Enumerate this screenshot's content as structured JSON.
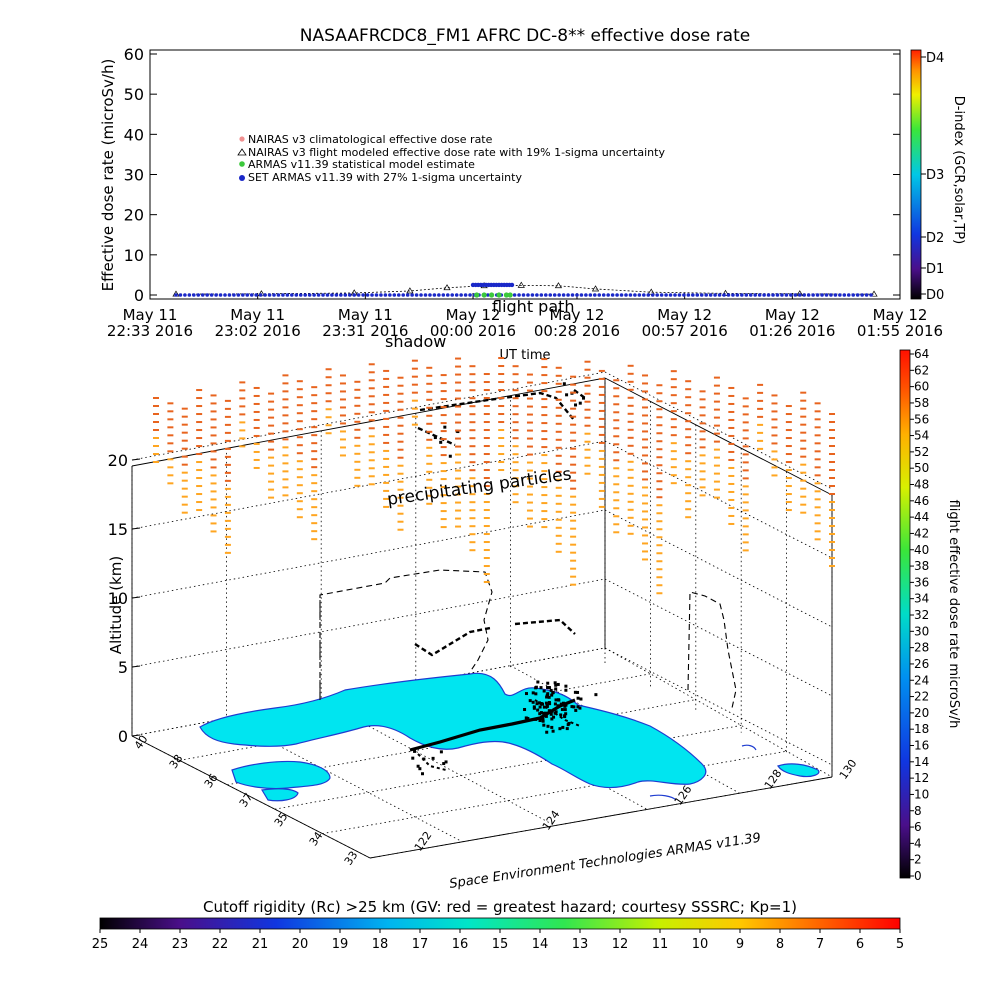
{
  "title": "NASAAFRCDC8_FM1 AFRC DC-8** effective dose rate",
  "chart_data": [
    {
      "type": "line",
      "ylabel": "Effective dose rate (microSv/h)",
      "xlabel": "UT time",
      "ylim": [
        0,
        60
      ],
      "yticks": [
        "0",
        "10",
        "20",
        "30",
        "40",
        "50",
        "60"
      ],
      "xtick_labels": [
        [
          "May 11",
          "22:33 2016"
        ],
        [
          "May 11",
          "23:02 2016"
        ],
        [
          "May 11",
          "23:31 2016"
        ],
        [
          "May 12",
          "00:00 2016"
        ],
        [
          "May 12",
          "00:28 2016"
        ],
        [
          "May 12",
          "00:57 2016"
        ],
        [
          "May 12",
          "01:26 2016"
        ],
        [
          "May 12",
          "01:55 2016"
        ]
      ],
      "xtick_minutes": [
        0,
        29,
        58,
        87,
        115,
        144,
        173,
        202
      ],
      "legend": [
        "NAIRAS v3 climatological effective dose rate",
        "NAIRAS v3 flight modeled effective dose rate with 19% 1-sigma uncertainty",
        "ARMAS v11.39 statistical model estimate",
        "SET ARMAS v11.39 with 27% 1-sigma uncertainty"
      ],
      "legend_placement": "upper-left",
      "series": [
        {
          "name": "NAIRAS v3 flight modeled effective dose rate with 19% 1-sigma uncertainty",
          "x": [
            7,
            30,
            55,
            70,
            80,
            90,
            100,
            110,
            120,
            135,
            155,
            175,
            195
          ],
          "y": [
            0.2,
            0.3,
            0.5,
            1.0,
            1.8,
            2.3,
            2.4,
            2.3,
            1.5,
            0.7,
            0.4,
            0.3,
            0.2
          ]
        },
        {
          "name": "SET ARMAS v11.39 with 27% 1-sigma uncertainty",
          "x": [
            7,
            30,
            60,
            87,
            88,
            97,
            98,
            130,
            160,
            195
          ],
          "y": [
            0,
            0,
            0,
            0,
            2.5,
            2.5,
            0,
            0,
            0,
            0
          ]
        },
        {
          "name": "ARMAS v11.39 statistical model estimate",
          "x": [
            88,
            90,
            92,
            94,
            96,
            97
          ],
          "y": [
            0,
            0,
            0,
            0,
            0,
            0
          ]
        }
      ],
      "colorbar": {
        "label": "D-index (GCR,solar,TP)",
        "ticks": [
          "D0",
          "D1",
          "D2",
          "D3",
          "D4"
        ]
      }
    },
    {
      "type": "scatter",
      "zlabel": "Altitude (km)",
      "zticks": [
        "0",
        "5",
        "10",
        "15",
        "20"
      ],
      "lat_ticks": [
        "40",
        "38",
        "36",
        "37",
        "35",
        "34",
        "33"
      ],
      "lon_ticks": [
        "122",
        "124",
        "126",
        "128",
        "130"
      ],
      "annotations": [
        "shadow",
        "flight path",
        "precipitating particles"
      ],
      "credit": "Space Environment Technologies ARMAS v11.39",
      "colorbar": {
        "label": "flight effective dose rate microSv/h",
        "ticks": [
          "0",
          "2",
          "4",
          "6",
          "8",
          "10",
          "12",
          "14",
          "16",
          "18",
          "20",
          "22",
          "24",
          "26",
          "28",
          "30",
          "32",
          "34",
          "36",
          "38",
          "40",
          "42",
          "44",
          "46",
          "48",
          "50",
          "52",
          "54",
          "56",
          "58",
          "60",
          "62",
          "64"
        ]
      },
      "rigidity_bar": {
        "label": "Cutoff rigidity (Rc) >25 km (GV: red = greatest hazard; courtesy SSSRC; Kp=1)",
        "ticks": [
          "25",
          "24",
          "23",
          "22",
          "21",
          "20",
          "19",
          "18",
          "17",
          "16",
          "15",
          "14",
          "13",
          "12",
          "11",
          "10",
          "9",
          "8",
          "7",
          "6",
          "5"
        ]
      },
      "colors": {
        "land": "#00e5f0",
        "coast": "#1e3cd0",
        "path": "#000000",
        "particles_hi": "#e8641e",
        "particles_lo": "#ffa520"
      }
    }
  ]
}
